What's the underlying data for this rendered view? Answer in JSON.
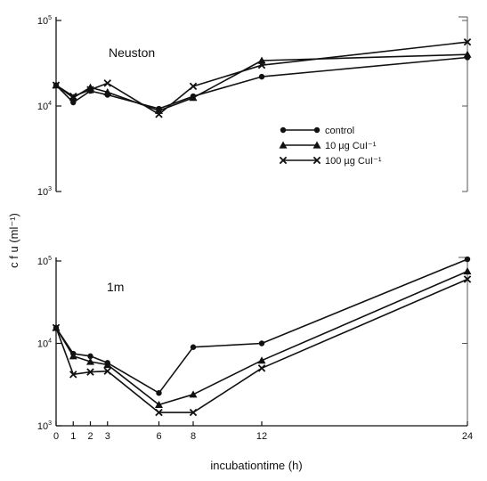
{
  "chart_data": [
    {
      "type": "line",
      "panel_label": "Neuston",
      "y_scale": "log",
      "ylim": [
        1000,
        100000
      ],
      "y_ticks": [
        {
          "value": 1000,
          "base": "10",
          "exp": "3"
        },
        {
          "value": 10000,
          "base": "10",
          "exp": "4"
        },
        {
          "value": 100000,
          "base": "10",
          "exp": "5"
        }
      ],
      "series": [
        {
          "name": "control",
          "marker": "circle",
          "x": [
            0,
            1,
            2,
            3,
            6,
            8,
            12,
            24
          ],
          "y": [
            17500,
            11000,
            15000,
            13500,
            9300,
            13000,
            22000,
            37000
          ]
        },
        {
          "name": "10 µg CuI⁻¹",
          "marker": "triangle",
          "x": [
            0,
            1,
            2,
            3,
            6,
            8,
            12,
            24
          ],
          "y": [
            17500,
            12500,
            16500,
            14500,
            8800,
            12500,
            34000,
            40000
          ]
        },
        {
          "name": "100 µg CuI⁻¹",
          "marker": "cross",
          "x": [
            0,
            1,
            2,
            3,
            6,
            8,
            12,
            24
          ],
          "y": [
            17500,
            13000,
            15500,
            18500,
            8000,
            17000,
            30000,
            56000
          ]
        }
      ],
      "legend": {
        "placement": "right-middle",
        "labels": [
          "control",
          "10 µg CuI⁻¹",
          "100 µg CuI⁻¹"
        ]
      }
    },
    {
      "type": "line",
      "panel_label": "1m",
      "y_scale": "log",
      "ylim": [
        1000,
        100000
      ],
      "y_ticks": [
        {
          "value": 1000,
          "base": "10",
          "exp": "3"
        },
        {
          "value": 10000,
          "base": "10",
          "exp": "4"
        },
        {
          "value": 100000,
          "base": "10",
          "exp": "5"
        }
      ],
      "series": [
        {
          "name": "control",
          "marker": "circle",
          "x": [
            0,
            1,
            2,
            3,
            6,
            8,
            12,
            24
          ],
          "y": [
            15500,
            7500,
            7000,
            5800,
            2500,
            9000,
            10000,
            105000
          ]
        },
        {
          "name": "10 µg CuI⁻¹",
          "marker": "triangle",
          "x": [
            0,
            1,
            2,
            3,
            6,
            8,
            12,
            24
          ],
          "y": [
            15500,
            7000,
            6000,
            5500,
            1800,
            2400,
            6200,
            75000
          ]
        },
        {
          "name": "100 µg CuI⁻¹",
          "marker": "cross",
          "x": [
            0,
            1,
            2,
            3,
            6,
            8,
            12,
            24
          ],
          "y": [
            15500,
            4200,
            4500,
            4600,
            1450,
            1450,
            5000,
            60000
          ]
        }
      ]
    }
  ],
  "axes": {
    "ylabel": "c f u   (ml⁻¹)",
    "xlabel": "incubationtime (h)",
    "x_ticks": [
      0,
      1,
      2,
      3,
      6,
      8,
      12,
      24
    ],
    "xlim": [
      0,
      24
    ]
  }
}
